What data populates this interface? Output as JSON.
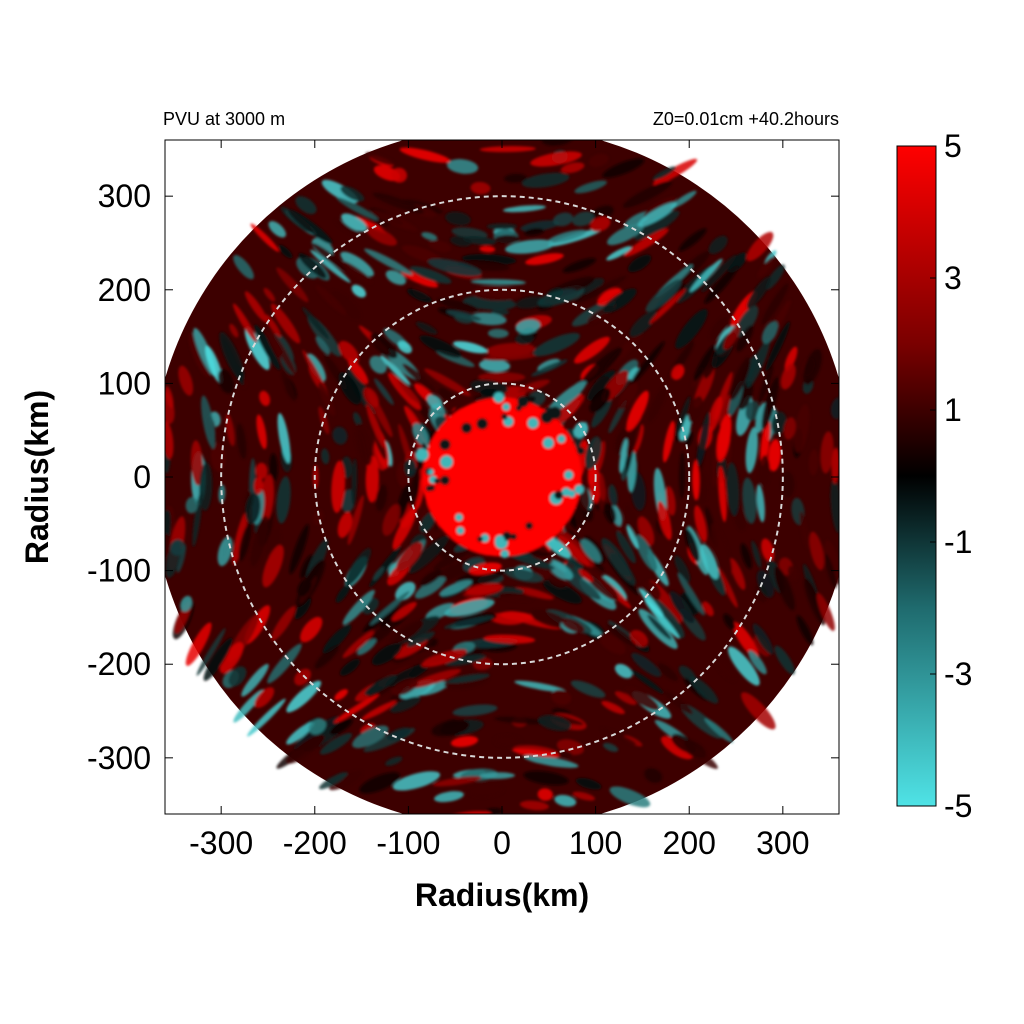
{
  "chart_data": {
    "type": "heatmap",
    "title_left": "PVU at  3000 m",
    "title_right": "Z0=0.01cm  +40.2hours",
    "xlabel": "Radius(km)",
    "ylabel": "Radius(km)",
    "xlim": [
      -360,
      360
    ],
    "ylim": [
      -360,
      360
    ],
    "x_ticks": [
      -300,
      -200,
      -100,
      0,
      100,
      200,
      300
    ],
    "y_ticks": [
      300,
      200,
      100,
      0,
      -100,
      -200,
      -300
    ],
    "x_tick_labels": [
      "-300",
      "-200",
      "-100",
      "0",
      "100",
      "200",
      "300"
    ],
    "y_tick_labels": [
      "300",
      "200",
      "100",
      "0",
      "-100",
      "-200",
      "-300"
    ],
    "domain_radius_km": 375,
    "reference_circle_radii_km": [
      100,
      200,
      300
    ],
    "colorbar": {
      "range": [
        -5,
        5
      ],
      "tick_values": [
        5,
        3,
        1,
        -1,
        -3,
        -5
      ],
      "tick_labels": [
        "5",
        "3",
        "1",
        "-1",
        "-3",
        "-5"
      ],
      "colors": {
        "min": "#4fe3e6",
        "zero": "#000000",
        "max": "#ff0000"
      }
    },
    "fields": {
      "core_radius_km": 85,
      "core_value": 5,
      "background_value": 1.2
    }
  }
}
